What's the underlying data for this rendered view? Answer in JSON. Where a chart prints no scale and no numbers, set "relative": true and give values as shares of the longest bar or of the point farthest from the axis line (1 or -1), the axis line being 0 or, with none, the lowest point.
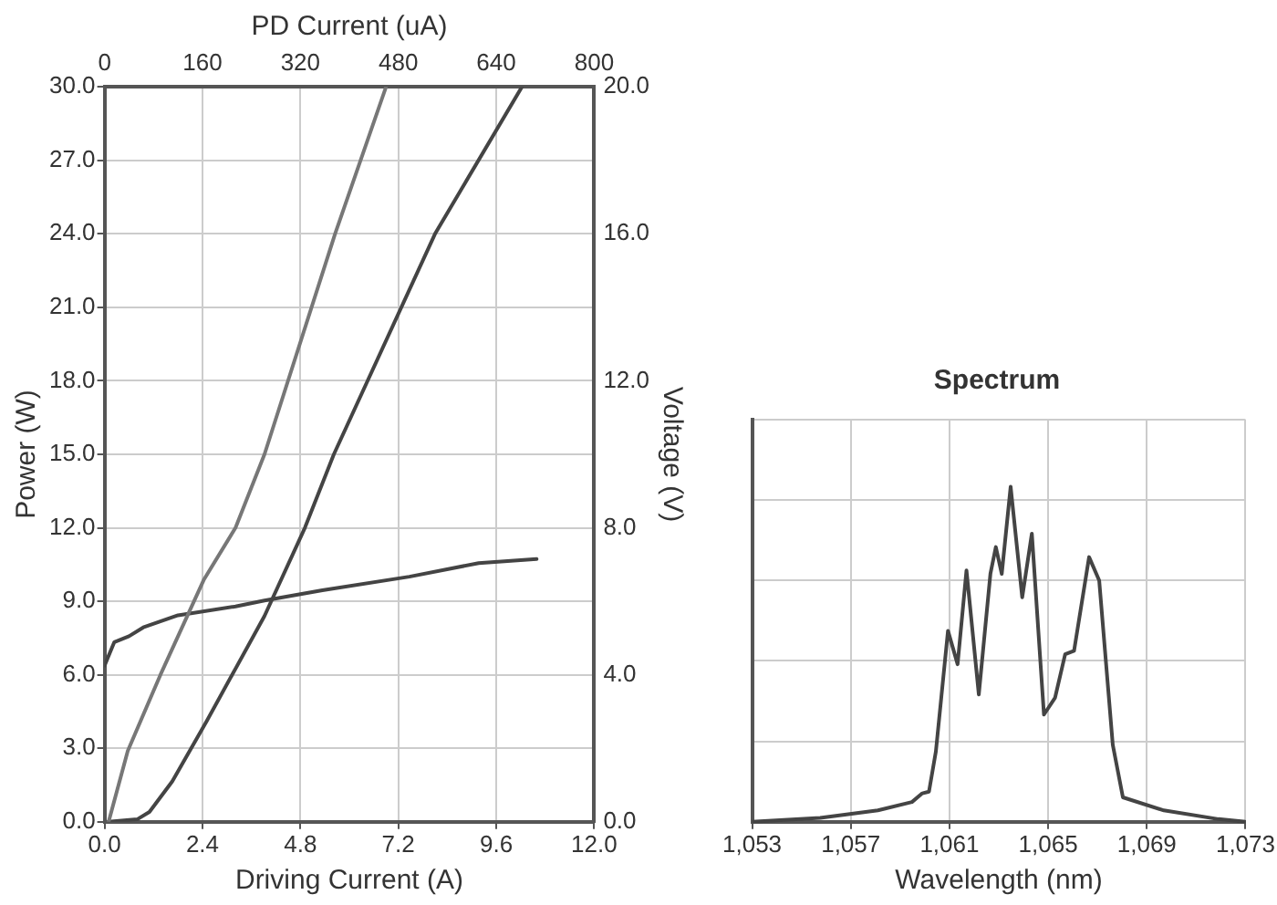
{
  "chart_data": [
    {
      "type": "line",
      "xlabel": "Driving Current (A)",
      "x2label": "PD Current (uA)",
      "ylabel": "Power (W)",
      "y2label": "Voltage (V)",
      "xlim": [
        0,
        12
      ],
      "xticks": [
        {
          "value": 0,
          "label": "0.0"
        },
        {
          "value": 2.4,
          "label": "2.4"
        },
        {
          "value": 4.8,
          "label": "4.8"
        },
        {
          "value": 7.2,
          "label": "7.2"
        },
        {
          "value": 9.6,
          "label": "9.6"
        },
        {
          "value": 12,
          "label": "12.0"
        }
      ],
      "x2lim": [
        0,
        800
      ],
      "x2ticks": [
        0,
        160,
        320,
        480,
        640,
        800
      ],
      "ylim": [
        0,
        30
      ],
      "yticks": [
        {
          "value": 0,
          "label": "0.0"
        },
        {
          "value": 3,
          "label": "3.0"
        },
        {
          "value": 6,
          "label": "6.0"
        },
        {
          "value": 9,
          "label": "9.0"
        },
        {
          "value": 12,
          "label": "12.0"
        },
        {
          "value": 15,
          "label": "15.0"
        },
        {
          "value": 18,
          "label": "18.0"
        },
        {
          "value": 21,
          "label": "21.0"
        },
        {
          "value": 24,
          "label": "24.0"
        },
        {
          "value": 27,
          "label": "27.0"
        },
        {
          "value": 30,
          "label": "30.0"
        }
      ],
      "y2lim": [
        0,
        20
      ],
      "y2ticks": [
        {
          "value": 0,
          "label": "0.0"
        },
        {
          "value": 4,
          "label": "4.0"
        },
        {
          "value": 8,
          "label": "8.0"
        },
        {
          "value": 12,
          "label": "12.0"
        },
        {
          "value": 16,
          "label": "16.0"
        },
        {
          "value": 20,
          "label": "20.0"
        }
      ],
      "grid": true,
      "legend": false,
      "marker": "none",
      "line_style": "solid",
      "series": [
        {
          "color": "#777777",
          "x": [
            0.1,
            0.57,
            1.37,
            2.44,
            3.21,
            3.92,
            5.65,
            6.9
          ],
          "values": [
            0,
            2.9,
            6.0,
            9.9,
            12.0,
            15.0,
            24.0,
            30.0
          ]
        },
        {
          "color": "#444444",
          "x": [
            0.1,
            0.8,
            1.1,
            1.66,
            2.5,
            3.92,
            4.91,
            5.62,
            8.1,
            10.23
          ],
          "values": [
            0,
            0.1,
            0.4,
            1.65,
            4.1,
            8.4,
            12.0,
            15.0,
            24.0,
            30.0
          ]
        },
        {
          "color": "#444444",
          "axis": "y2",
          "x": [
            0,
            0.24,
            0.6,
            0.95,
            1.8,
            3.21,
            3.92,
            5.34,
            7.47,
            9.17,
            10.59
          ],
          "values": [
            4.25,
            4.89,
            5.05,
            5.29,
            5.62,
            5.86,
            6.02,
            6.3,
            6.67,
            7.04,
            7.15
          ]
        }
      ]
    },
    {
      "type": "line",
      "title": "Spectrum",
      "xlabel": "Wavelength (nm)",
      "relative": true,
      "xlim": [
        1053,
        1073
      ],
      "xticks": [
        {
          "value": 1053,
          "label": "1,053"
        },
        {
          "value": 1057,
          "label": "1,057"
        },
        {
          "value": 1061,
          "label": "1,061"
        },
        {
          "value": 1065,
          "label": "1,065"
        },
        {
          "value": 1069,
          "label": "1,069"
        },
        {
          "value": 1073,
          "label": "1,073"
        }
      ],
      "grid": true,
      "legend": false,
      "marker": "none",
      "line_style": "solid",
      "series": [
        {
          "color": "#444444",
          "x": [
            1053,
            1055.76,
            1058.1,
            1059.48,
            1059.9,
            1060.17,
            1060.45,
            1060.94,
            1061.33,
            1061.69,
            1062.19,
            1062.66,
            1062.88,
            1063.12,
            1063.48,
            1063.95,
            1064.34,
            1064.83,
            1065.28,
            1065.69,
            1066.05,
            1066.66,
            1067.07,
            1067.62,
            1068.03,
            1069.69,
            1071.9,
            1073
          ],
          "values": [
            0,
            0.012,
            0.034,
            0.059,
            0.085,
            0.09,
            0.21,
            0.57,
            0.47,
            0.75,
            0.38,
            0.74,
            0.82,
            0.74,
            1.0,
            0.67,
            0.86,
            0.32,
            0.37,
            0.5,
            0.51,
            0.79,
            0.72,
            0.23,
            0.073,
            0.034,
            0.008,
            0
          ]
        }
      ]
    }
  ]
}
